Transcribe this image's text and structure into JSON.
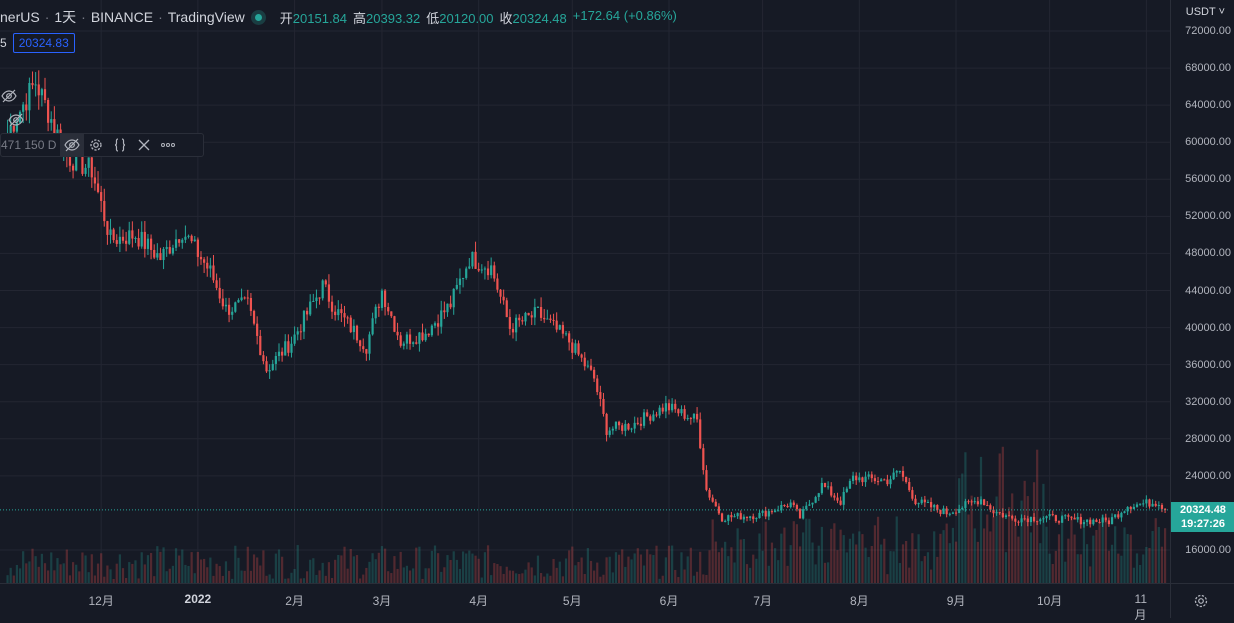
{
  "header": {
    "symbol": "nerUS",
    "interval": "1天",
    "exchange": "BINANCE",
    "source": "TradingView",
    "open_label": "开",
    "open": "20151.84",
    "high_label": "高",
    "high": "20393.32",
    "low_label": "低",
    "low": "20120.00",
    "close_label": "收",
    "close": "20324.48",
    "change": "+172.64 (+0.86%)"
  },
  "row2": {
    "prefix": "5",
    "last_value": "20324.83"
  },
  "toolbar": {
    "label": "471 150 D"
  },
  "scale": {
    "currency": "USDT ˅",
    "current_price": "20324.48",
    "countdown": "19:27:26"
  },
  "colors": {
    "up": "#26a69a",
    "down": "#ef5350",
    "background": "#161a25",
    "grid": "#232632"
  },
  "chart_data": {
    "type": "candlestick",
    "y_tick_labels": [
      "72000.00",
      "68000.00",
      "64000.00",
      "60000.00",
      "56000.00",
      "52000.00",
      "48000.00",
      "44000.00",
      "40000.00",
      "36000.00",
      "32000.00",
      "28000.00",
      "24000.00",
      "16000.00"
    ],
    "y_ticks": [
      72000,
      68000,
      64000,
      60000,
      56000,
      52000,
      48000,
      44000,
      40000,
      36000,
      32000,
      28000,
      24000,
      16000
    ],
    "x_tick_labels": [
      "12月",
      "2022",
      "2月",
      "3月",
      "4月",
      "5月",
      "6月",
      "7月",
      "8月",
      "9月",
      "10月",
      "11月"
    ],
    "ylim": [
      12800,
      73600
    ],
    "current_price": 20324.48,
    "close_path": [
      [
        "2021-11-01",
        61000
      ],
      [
        "2021-11-10",
        66500
      ],
      [
        "2021-11-20",
        58500
      ],
      [
        "2021-11-28",
        57000
      ],
      [
        "2021-12-04",
        49500
      ],
      [
        "2021-12-12",
        50000
      ],
      [
        "2021-12-20",
        47500
      ],
      [
        "2021-12-27",
        50500
      ],
      [
        "2022-01-05",
        46000
      ],
      [
        "2022-01-10",
        42000
      ],
      [
        "2022-01-17",
        42500
      ],
      [
        "2022-01-23",
        35500
      ],
      [
        "2022-01-31",
        38500
      ],
      [
        "2022-02-10",
        44500
      ],
      [
        "2022-02-14",
        42000
      ],
      [
        "2022-02-24",
        38000
      ],
      [
        "2022-03-01",
        44000
      ],
      [
        "2022-03-07",
        38500
      ],
      [
        "2022-03-15",
        39500
      ],
      [
        "2022-03-23",
        42500
      ],
      [
        "2022-03-29",
        47500
      ],
      [
        "2022-04-05",
        46500
      ],
      [
        "2022-04-11",
        40000
      ],
      [
        "2022-04-20",
        41500
      ],
      [
        "2022-04-30",
        38500
      ],
      [
        "2022-05-08",
        34500
      ],
      [
        "2022-05-12",
        29000
      ],
      [
        "2022-05-20",
        29500
      ],
      [
        "2022-05-31",
        31500
      ],
      [
        "2022-06-10",
        30000
      ],
      [
        "2022-06-13",
        22500
      ],
      [
        "2022-06-18",
        19500
      ],
      [
        "2022-06-30",
        19800
      ],
      [
        "2022-07-10",
        21000
      ],
      [
        "2022-07-13",
        19500
      ],
      [
        "2022-07-20",
        23000
      ],
      [
        "2022-07-26",
        21200
      ],
      [
        "2022-07-30",
        23800
      ],
      [
        "2022-08-10",
        23500
      ],
      [
        "2022-08-14",
        24500
      ],
      [
        "2022-08-19",
        21300
      ],
      [
        "2022-08-29",
        20000
      ],
      [
        "2022-09-09",
        21500
      ],
      [
        "2022-09-13",
        20200
      ],
      [
        "2022-09-19",
        19400
      ],
      [
        "2022-09-30",
        19500
      ],
      [
        "2022-10-10",
        19200
      ],
      [
        "2022-10-20",
        19100
      ],
      [
        "2022-10-26",
        20800
      ],
      [
        "2022-11-05",
        21200
      ],
      [
        "2022-11-07",
        20324
      ]
    ],
    "volume_peak_month": "2022-09"
  }
}
